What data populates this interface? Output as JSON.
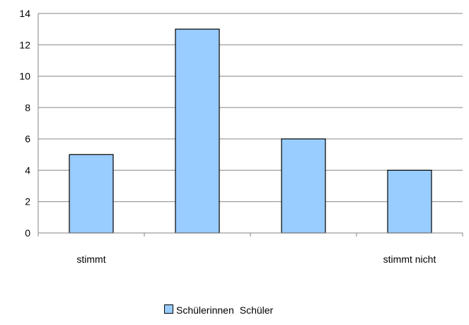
{
  "chart_data": {
    "type": "bar",
    "categories": [
      "stimmt",
      "",
      "",
      "stimmt nicht"
    ],
    "series": [
      {
        "name": "Schülerinnen",
        "values": [
          5,
          13,
          6,
          4
        ],
        "color": "#99CCFF"
      },
      {
        "name": "Schüler",
        "values": [
          0,
          0,
          0,
          0
        ]
      }
    ],
    "yticks": [
      0,
      2,
      4,
      6,
      8,
      10,
      12,
      14
    ],
    "ylim": [
      0,
      14
    ],
    "grid": true,
    "legend": "bottom"
  },
  "legend": {
    "items": [
      "Schülerinnen",
      "Schüler"
    ]
  }
}
